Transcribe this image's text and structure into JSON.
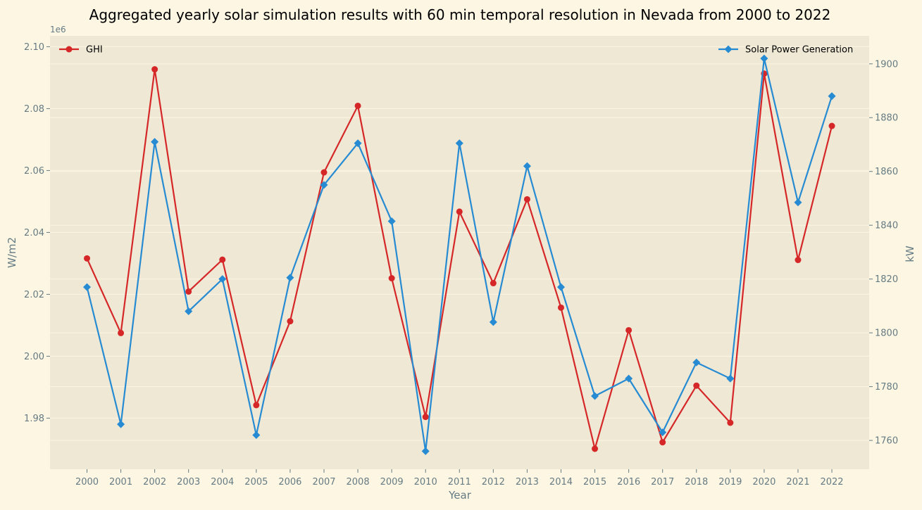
{
  "chart_data": {
    "type": "line",
    "title": "Aggregated yearly solar simulation results with 60 min temporal resolution in Nevada from 2000 to 2022",
    "xlabel": "Year",
    "ylabel_left": "W/m2",
    "ylabel_right": "kW",
    "left_axis_offset_label": "1e6",
    "x": [
      "2000",
      "2001",
      "2002",
      "2003",
      "2004",
      "2005",
      "2006",
      "2007",
      "2008",
      "2009",
      "2010",
      "2011",
      "2012",
      "2013",
      "2014",
      "2015",
      "2016",
      "2017",
      "2018",
      "2019",
      "2020",
      "2021",
      "2022"
    ],
    "y_left_range": [
      1.9635,
      2.1035
    ],
    "y_left_ticks": [
      "1.98",
      "2.00",
      "2.02",
      "2.04",
      "2.06",
      "2.08",
      "2.10"
    ],
    "y_left_tick_values": [
      1.98,
      2.0,
      2.02,
      2.04,
      2.06,
      2.08,
      2.1
    ],
    "y_right_range": [
      1749.3,
      1910.4
    ],
    "y_right_ticks": [
      "1760",
      "1780",
      "1800",
      "1820",
      "1840",
      "1860",
      "1880",
      "1900"
    ],
    "y_right_tick_values": [
      1760,
      1780,
      1800,
      1820,
      1840,
      1860,
      1880,
      1900
    ],
    "grid": true,
    "series": [
      {
        "name": "GHI",
        "axis": "left",
        "color": "#d62728",
        "marker": "circle",
        "legend_position": "top-left",
        "values": [
          2.0316,
          2.0075,
          2.0927,
          2.0209,
          2.0312,
          1.9842,
          2.0113,
          2.0594,
          2.0809,
          2.0252,
          1.9804,
          2.0467,
          2.0236,
          2.0507,
          2.0157,
          1.9701,
          2.0084,
          1.9722,
          1.9905,
          1.9785,
          2.0913,
          2.0311,
          2.0744
        ]
      },
      {
        "name": "Solar Power Generation",
        "axis": "right",
        "color": "#268bd2",
        "marker": "diamond",
        "legend_position": "top-right",
        "values": [
          1817,
          1766,
          1871,
          1808,
          1820,
          1762,
          1820.5,
          1855,
          1870.5,
          1841.5,
          1756,
          1870.5,
          1804,
          1862,
          1817,
          1776.5,
          1783,
          1763,
          1789,
          1783,
          1902,
          1848.5,
          1888
        ]
      }
    ]
  }
}
